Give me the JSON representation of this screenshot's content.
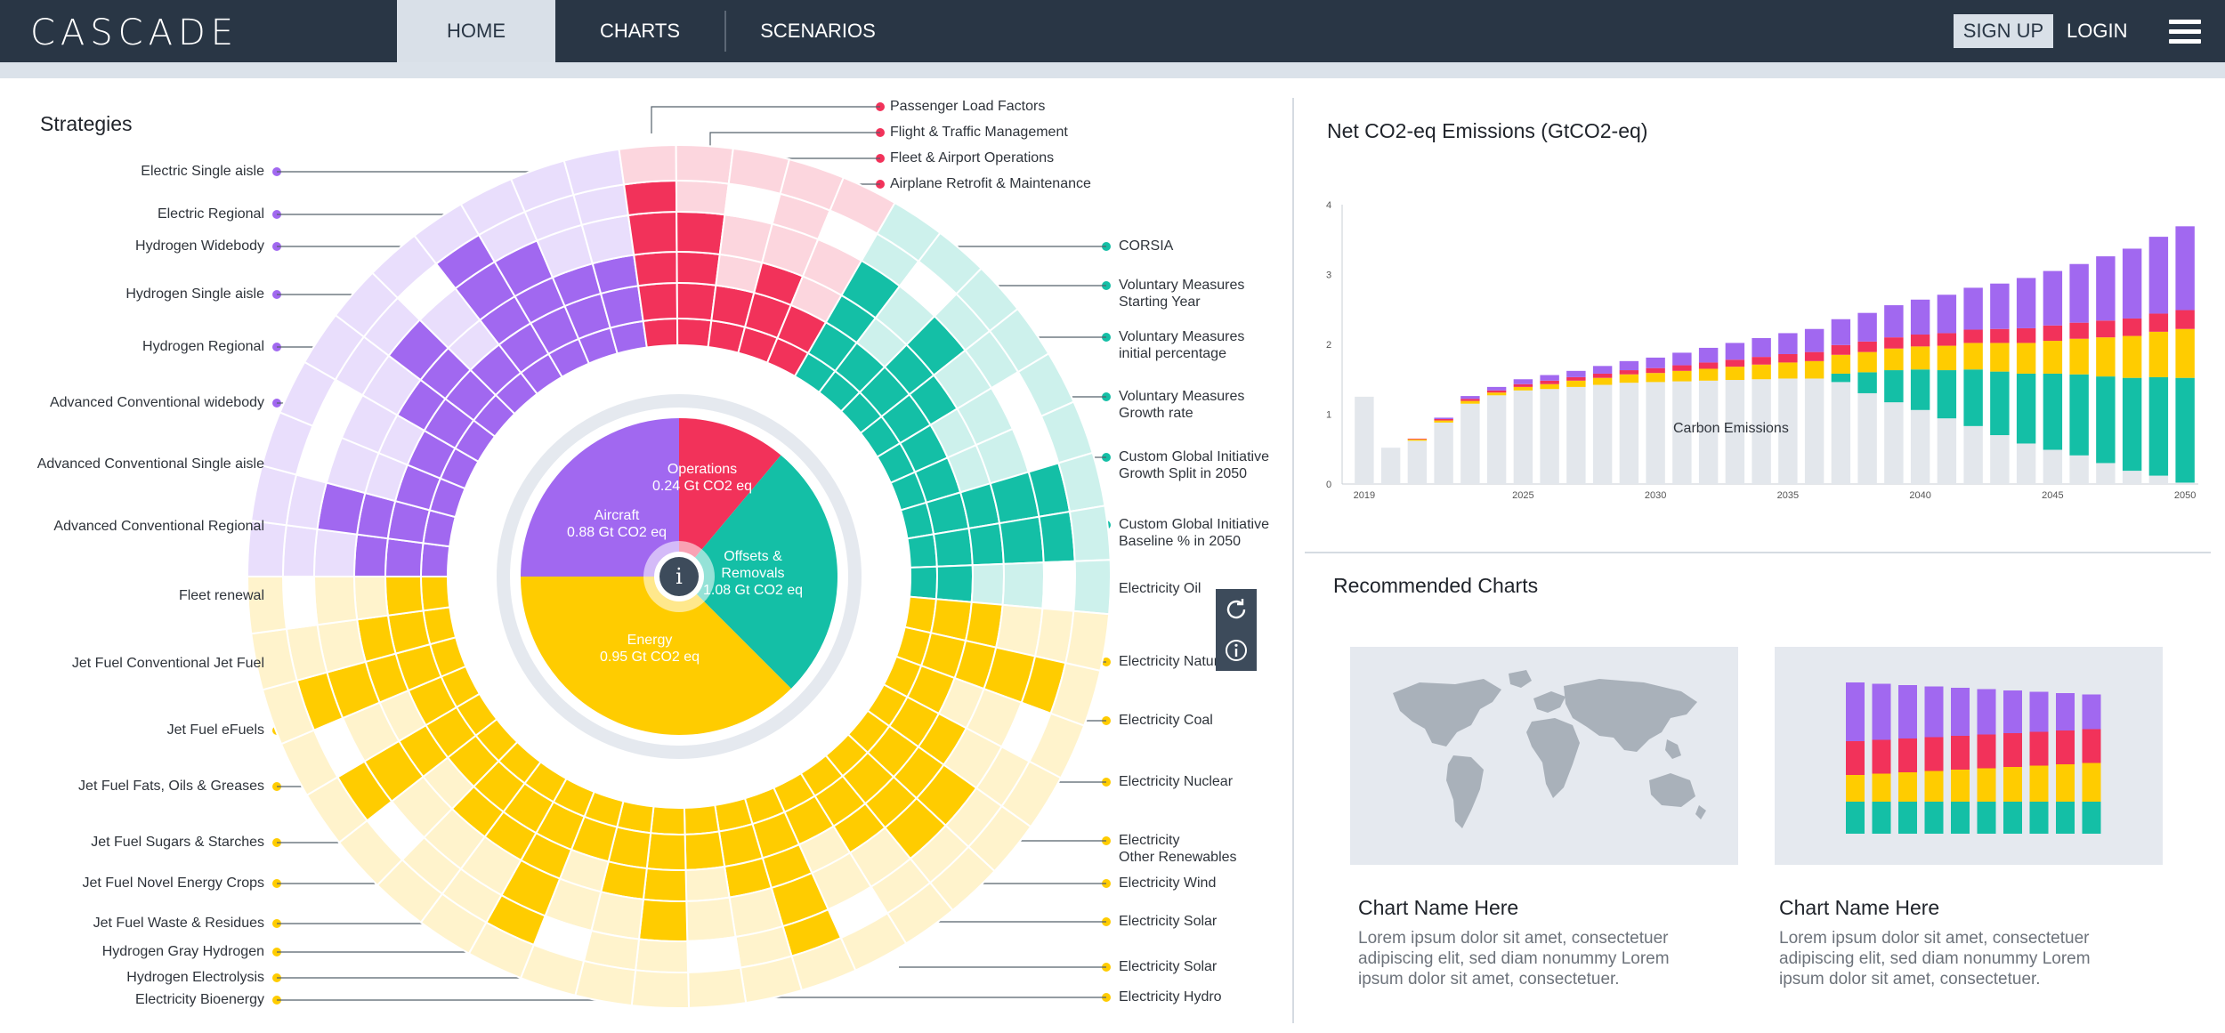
{
  "app": {
    "logo": "CASCADE"
  },
  "nav": {
    "tabs": [
      {
        "label": "HOME",
        "active": true
      },
      {
        "label": "CHARTS",
        "active": false
      },
      {
        "label": "SCENARIOS",
        "active": false
      }
    ],
    "signup": "SIGN UP",
    "login": "LOGIN"
  },
  "colors": {
    "aircraft": "#a168f0",
    "aircraft_light": "#e9defc",
    "operations": "#f2325a",
    "operations_light": "#fcd6de",
    "offsets": "#14bfa6",
    "offsets_light": "#cdf1ec",
    "energy": "#ffcc00",
    "energy_light": "#fff3cc",
    "carbon": "#e3e7ec",
    "nav_bg": "#293645"
  },
  "strategies": {
    "title": "Strategies",
    "center": {
      "operations": {
        "name": "Operations",
        "value": "0.24 Gt CO2 eq"
      },
      "aircraft": {
        "name": "Aircraft",
        "value": "0.88 Gt CO2 eq"
      },
      "offsets": {
        "name": "Offsets & Removals",
        "name_lines": [
          "Offsets &",
          "Removals"
        ],
        "value": "1.08 Gt CO2 eq"
      },
      "energy": {
        "name": "Energy",
        "value": "0.95 Gt CO2 eq"
      },
      "info_icon": "info-icon"
    },
    "top_labels": [
      "Passenger Load Factors",
      "Flight & Traffic Management",
      "Fleet & Airport Operations",
      "Airplane Retrofit & Maintenance"
    ],
    "left_labels": [
      "Electric Single aisle",
      "Electric Regional",
      "Hydrogen Widebody",
      "Hydrogen Single aisle",
      "Hydrogen Regional",
      "Advanced  Conventional widebody",
      "Advanced  Conventional Single aisle",
      "Advanced Conventional Regional",
      "Fleet renewal",
      "Jet Fuel Conventional Jet Fuel",
      "Jet Fuel eFuels",
      "Jet Fuel Fats, Oils & Greases",
      "Jet Fuel Sugars & Starches",
      "Jet Fuel Novel Energy Crops",
      "Jet Fuel Waste & Residues",
      "Hydrogen Gray Hydrogen",
      "Hydrogen Electrolysis",
      "Electricity Bioenergy"
    ],
    "right_labels": [
      "CORSIA",
      "Voluntary  Measures\nStarting Year",
      "Voluntary Measures\ninitial percentage",
      "Voluntary Measures\nGrowth rate",
      "Custom Global Initiative\nGrowth Split in 2050",
      "Custom Global Initiative\nBaseline % in 2050",
      "Electricity Oil",
      "Electricity Natural",
      "Electricity Coal",
      "Electricity Nuclear",
      "Electricity\nOther Renewables",
      "Electricity Wind",
      "Electricity Solar",
      "Electricity Solar",
      "Electricity Hydro"
    ],
    "tools": [
      "refresh-icon",
      "info-icon"
    ]
  },
  "emissions": {
    "title": "Net CO2-eq Emissions (GtCO2-eq)",
    "chart_data": {
      "type": "bar",
      "stacked": true,
      "x": [
        2019,
        2020,
        2021,
        2022,
        2023,
        2024,
        2025,
        2026,
        2027,
        2028,
        2029,
        2030,
        2031,
        2032,
        2033,
        2034,
        2035,
        2036,
        2037,
        2038,
        2039,
        2040,
        2041,
        2042,
        2043,
        2044,
        2045,
        2046,
        2047,
        2048,
        2049,
        2050
      ],
      "xticks": [
        "2019",
        "2025",
        "2030",
        "2035",
        "2040",
        "2045",
        "2050"
      ],
      "ylim": [
        0,
        4
      ],
      "yticks": [
        "0",
        "1",
        "2",
        "3",
        "4"
      ],
      "annotation": "Carbon Emissions",
      "series": [
        {
          "color": "carbon",
          "values": [
            1.25,
            0.52,
            0.62,
            0.88,
            1.15,
            1.27,
            1.34,
            1.36,
            1.39,
            1.42,
            1.45,
            1.46,
            1.47,
            1.48,
            1.49,
            1.5,
            1.51,
            1.51,
            1.46,
            1.3,
            1.17,
            1.06,
            0.94,
            0.83,
            0.7,
            0.58,
            0.49,
            0.41,
            0.3,
            0.19,
            0.12,
            0.02
          ]
        },
        {
          "color": "offsets",
          "values": [
            0,
            0,
            0,
            0,
            0,
            0,
            0,
            0,
            0,
            0,
            0,
            0,
            0,
            0,
            0,
            0,
            0,
            0,
            0.12,
            0.3,
            0.46,
            0.58,
            0.69,
            0.81,
            0.91,
            1.0,
            1.09,
            1.16,
            1.24,
            1.33,
            1.41,
            1.5
          ]
        },
        {
          "color": "energy",
          "values": [
            0,
            0,
            0.02,
            0.03,
            0.04,
            0.04,
            0.05,
            0.07,
            0.09,
            0.1,
            0.12,
            0.13,
            0.15,
            0.17,
            0.19,
            0.21,
            0.23,
            0.25,
            0.27,
            0.29,
            0.31,
            0.33,
            0.35,
            0.38,
            0.41,
            0.44,
            0.47,
            0.51,
            0.56,
            0.6,
            0.65,
            0.7
          ]
        },
        {
          "color": "operations",
          "values": [
            0,
            0,
            0.01,
            0.02,
            0.03,
            0.03,
            0.04,
            0.05,
            0.05,
            0.06,
            0.06,
            0.07,
            0.08,
            0.09,
            0.1,
            0.11,
            0.12,
            0.13,
            0.14,
            0.15,
            0.16,
            0.17,
            0.18,
            0.19,
            0.2,
            0.21,
            0.22,
            0.23,
            0.24,
            0.25,
            0.26,
            0.27
          ]
        },
        {
          "color": "aircraft",
          "values": [
            0,
            0,
            0,
            0.02,
            0.04,
            0.05,
            0.07,
            0.08,
            0.09,
            0.11,
            0.13,
            0.15,
            0.18,
            0.21,
            0.24,
            0.27,
            0.3,
            0.33,
            0.37,
            0.41,
            0.46,
            0.5,
            0.55,
            0.6,
            0.65,
            0.72,
            0.78,
            0.84,
            0.92,
            1.0,
            1.1,
            1.2
          ]
        }
      ]
    }
  },
  "recommended": {
    "title": "Recommended Charts",
    "cards": [
      {
        "title": "Chart Name Here",
        "description": "Lorem ipsum dolor sit amet, consectetuer adipiscing elit, sed diam nonummy Lorem ipsum dolor sit amet, consectetuer.",
        "thumbnail": "world-map"
      },
      {
        "title": "Chart Name Here",
        "description": "Lorem ipsum dolor sit amet, consectetuer adipiscing elit, sed diam nonummy Lorem ipsum dolor sit amet, consectetuer.",
        "thumbnail": "stacked-bars"
      }
    ]
  }
}
